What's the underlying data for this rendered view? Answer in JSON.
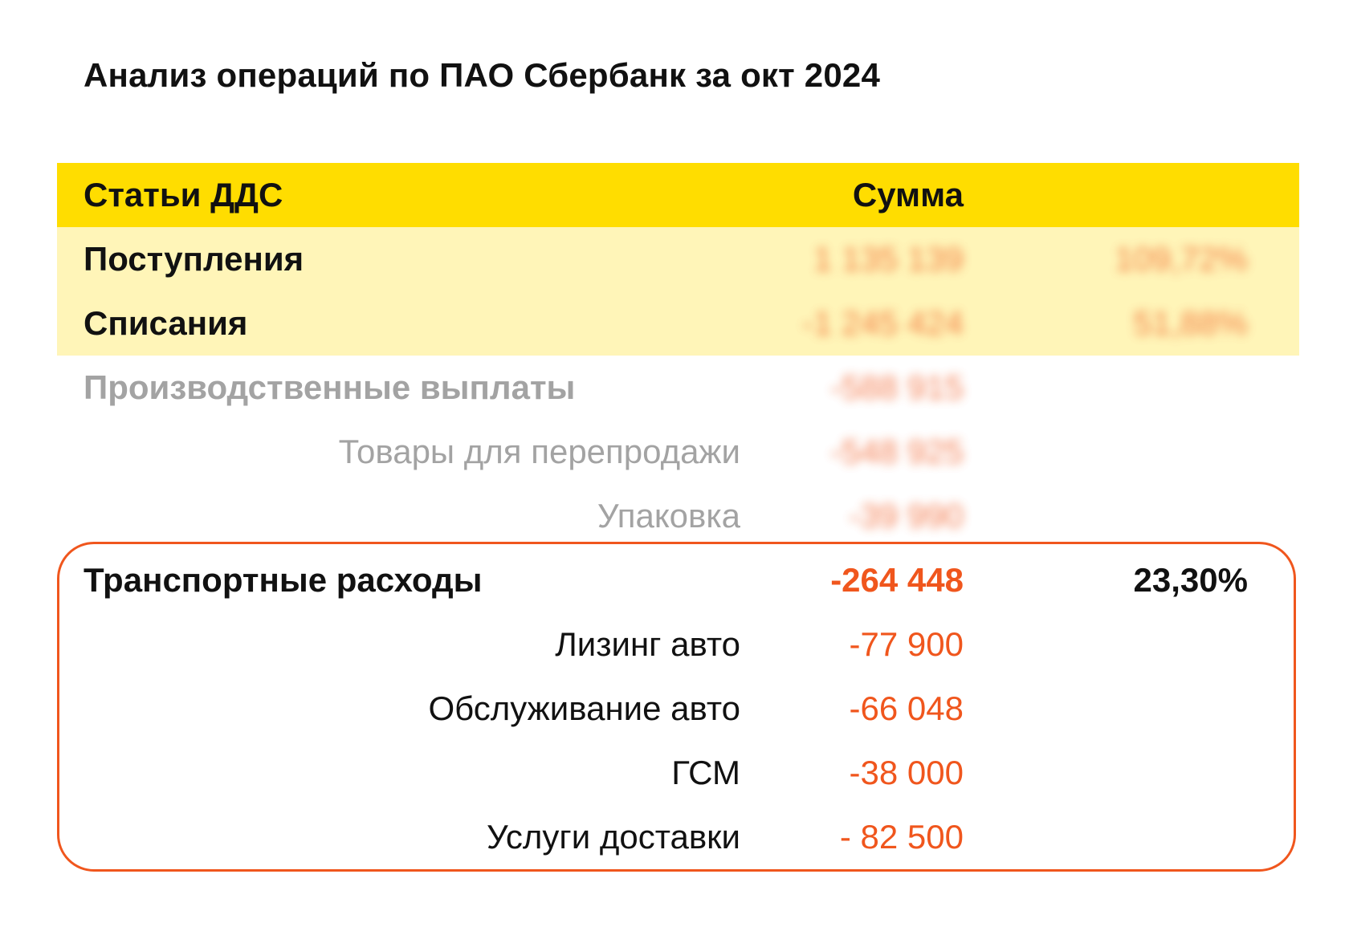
{
  "title": "Анализ операций по ПАО Сбербанк за окт 2024",
  "colors": {
    "header_band": "#ffdd00",
    "summary_band": "#fff5b8",
    "accent": "#f0561d",
    "muted_text": "#a3a3a3"
  },
  "table": {
    "headers": {
      "item": "Статьи ДДС",
      "sum": "Сумма"
    },
    "summary": {
      "income": {
        "label": "Поступления",
        "sum": "1 135 139",
        "pct": "109,72%"
      },
      "outflow": {
        "label": "Списания",
        "sum": "-1 245 424",
        "pct": "51,88%"
      }
    },
    "production": {
      "label": "Производственные выплаты",
      "sum": "-588 915",
      "items": [
        {
          "label": "Товары для перепродажи",
          "sum": "-548 925"
        },
        {
          "label": "Упаковка",
          "sum": "-39 990"
        }
      ]
    },
    "transport": {
      "label": "Транспортные расходы",
      "sum": "-264 448",
      "pct": "23,30%",
      "items": [
        {
          "label": "Лизинг авто",
          "sum": "-77 900"
        },
        {
          "label": "Обслуживание авто",
          "sum": "-66 048"
        },
        {
          "label": "ГСМ",
          "sum": "-38 000"
        },
        {
          "label": "Услуги доставки",
          "sum": "- 82 500"
        }
      ]
    }
  }
}
